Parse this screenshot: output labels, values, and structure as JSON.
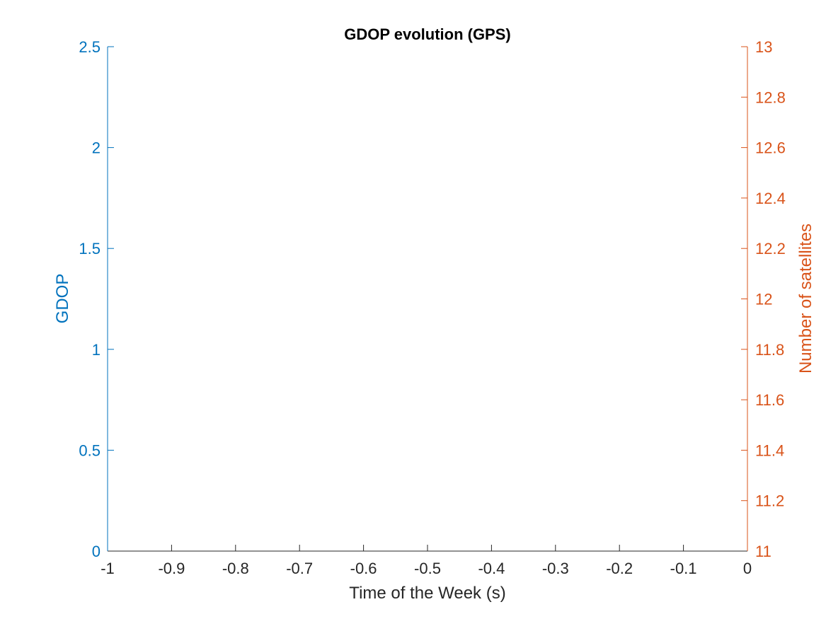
{
  "chart_data": {
    "type": "line",
    "title": "GDOP evolution (GPS)",
    "xlabel": "Time of the Week (s)",
    "ylabel_left": "GDOP",
    "ylabel_right": "Number of satellites",
    "xlim": [
      -1,
      0
    ],
    "ylim_left": [
      0,
      2.5
    ],
    "ylim_right": [
      11,
      13
    ],
    "xticks": [
      -1,
      -0.9,
      -0.8,
      -0.7,
      -0.6,
      -0.5,
      -0.4,
      -0.3,
      -0.2,
      -0.1,
      0
    ],
    "xtick_labels": [
      "-1",
      "-0.9",
      "-0.8",
      "-0.7",
      "-0.6",
      "-0.5",
      "-0.4",
      "-0.3",
      "-0.2",
      "-0.1",
      "0"
    ],
    "yticks_left": [
      0,
      0.5,
      1,
      1.5,
      2,
      2.5
    ],
    "ytick_labels_left": [
      "0",
      "0.5",
      "1",
      "1.5",
      "2",
      "2.5"
    ],
    "yticks_right": [
      11,
      11.2,
      11.4,
      11.6,
      11.8,
      12,
      12.2,
      12.4,
      12.6,
      12.8,
      13
    ],
    "ytick_labels_right": [
      "11",
      "11.2",
      "11.4",
      "11.6",
      "11.8",
      "12",
      "12.2",
      "12.4",
      "12.6",
      "12.8",
      "13"
    ],
    "grid": false,
    "series": [
      {
        "axis": "left",
        "x": [],
        "y": []
      },
      {
        "axis": "right",
        "x": [],
        "y": []
      }
    ],
    "colors": {
      "left_axis": "#0072BD",
      "right_axis": "#D95319",
      "bottom_axis": "#262626",
      "title": "#000000"
    }
  }
}
